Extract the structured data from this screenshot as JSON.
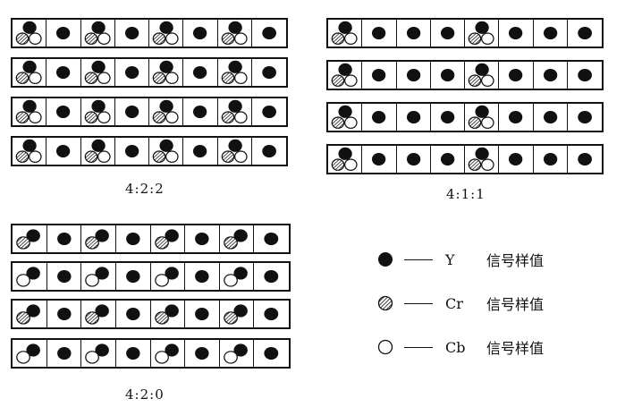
{
  "panels": [
    {
      "caption": "4:2:2",
      "rows": [
        [
          "ycrcb",
          "y",
          "ycrcb",
          "y",
          "ycrcb",
          "y",
          "ycrcb",
          "y"
        ],
        [
          "ycrcb",
          "y",
          "ycrcb",
          "y",
          "ycrcb",
          "y",
          "ycrcb",
          "y"
        ],
        [
          "ycrcb",
          "y",
          "ycrcb",
          "y",
          "ycrcb",
          "y",
          "ycrcb",
          "y"
        ],
        [
          "ycrcb",
          "y",
          "ycrcb",
          "y",
          "ycrcb",
          "y",
          "ycrcb",
          "y"
        ]
      ]
    },
    {
      "caption": "4:1:1",
      "rows": [
        [
          "ycrcb",
          "y",
          "y",
          "y",
          "ycrcb",
          "y",
          "y",
          "y"
        ],
        [
          "ycrcb",
          "y",
          "y",
          "y",
          "ycrcb",
          "y",
          "y",
          "y"
        ],
        [
          "ycrcb",
          "y",
          "y",
          "y",
          "ycrcb",
          "y",
          "y",
          "y"
        ],
        [
          "ycrcb",
          "y",
          "y",
          "y",
          "ycrcb",
          "y",
          "y",
          "y"
        ]
      ]
    },
    {
      "caption": "4:2:0",
      "rows": [
        [
          "ycr",
          "y",
          "ycr",
          "y",
          "ycr",
          "y",
          "ycr",
          "y"
        ],
        [
          "ycb",
          "y",
          "ycb",
          "y",
          "ycb",
          "y",
          "ycb",
          "y"
        ],
        [
          "ycr",
          "y",
          "ycr",
          "y",
          "ycr",
          "y",
          "ycr",
          "y"
        ],
        [
          "ycb",
          "y",
          "ycb",
          "y",
          "ycb",
          "y",
          "ycb",
          "y"
        ]
      ]
    }
  ],
  "legend": [
    {
      "symbol": "y",
      "code": "Y",
      "label": "信号样值"
    },
    {
      "symbol": "cr",
      "code": "Cr",
      "label": "信号样值"
    },
    {
      "symbol": "cb",
      "code": "Cb",
      "label": "信号样值"
    }
  ],
  "colors": {
    "ink": "#111111",
    "paper": "#ffffff"
  }
}
